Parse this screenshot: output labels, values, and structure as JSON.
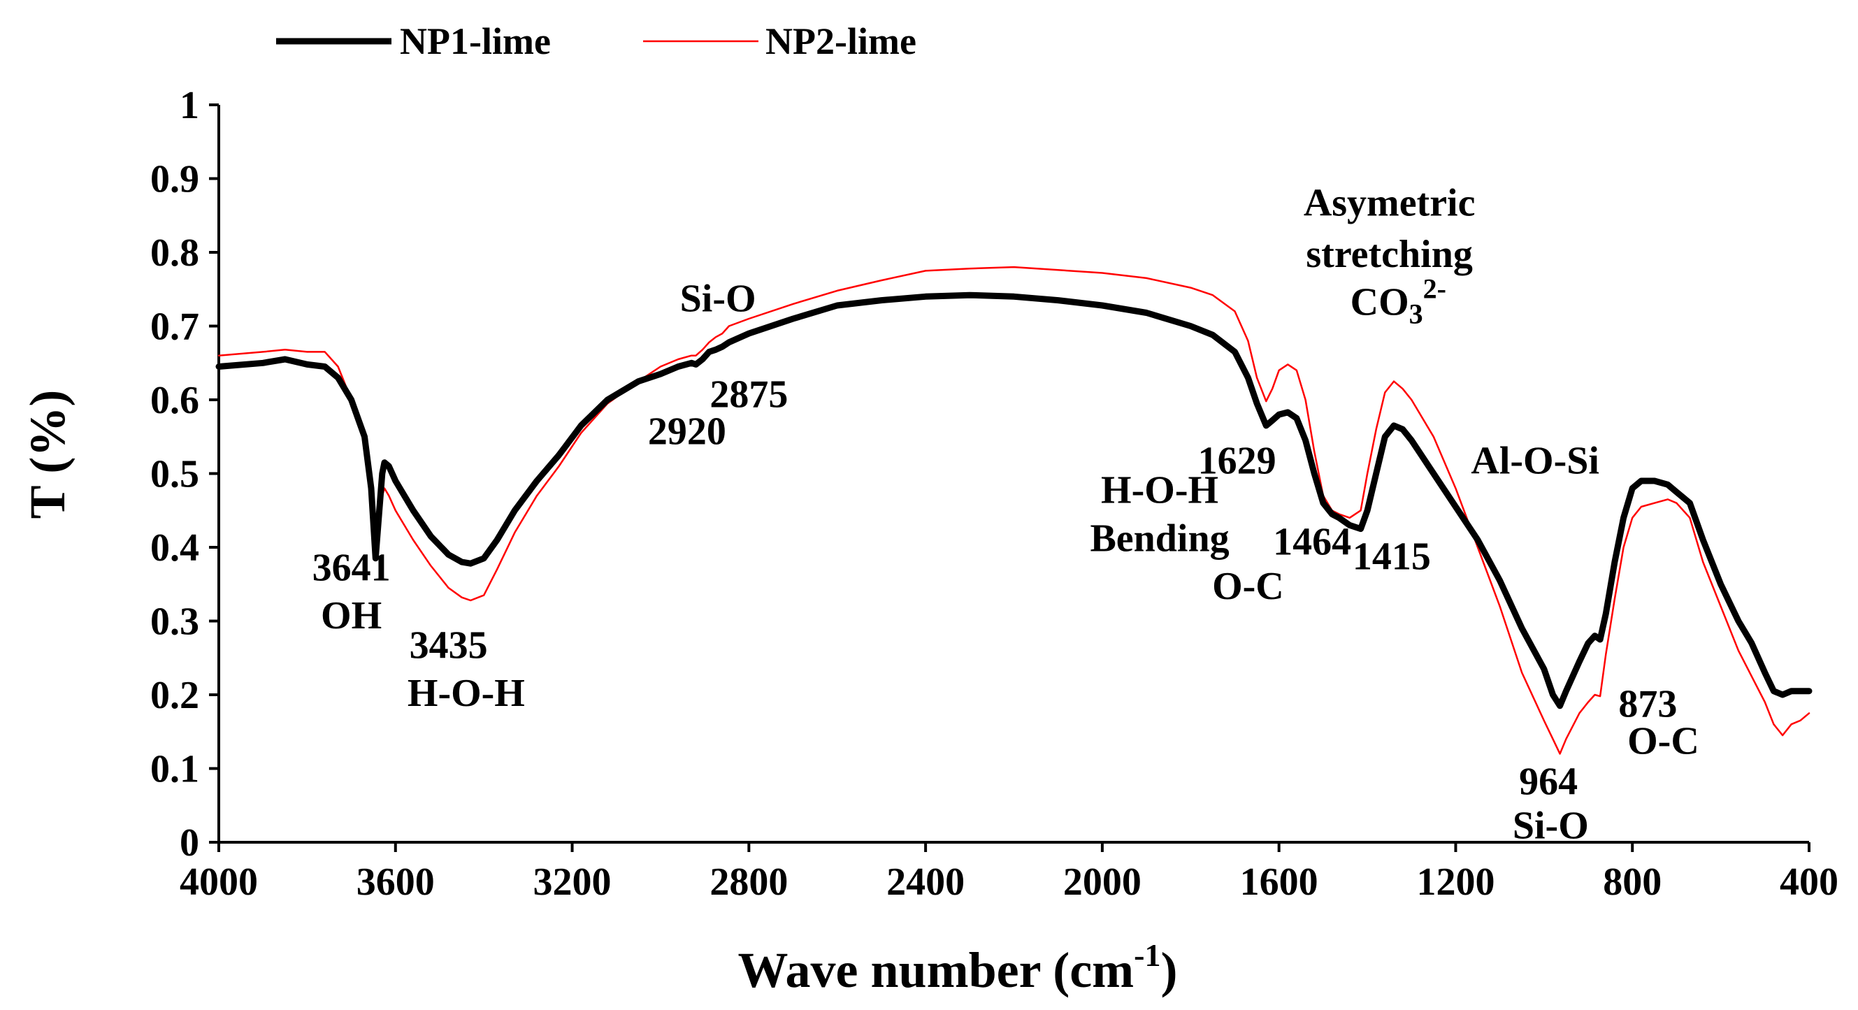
{
  "chart_data": {
    "type": "line",
    "title": "",
    "xlabel": "Wave number (cm",
    "xlabel_sup": "-1",
    "xlabel_close": ")",
    "ylabel": "T (%)",
    "xlim": [
      4000,
      400
    ],
    "ylim": [
      0,
      1
    ],
    "x_reversed": true,
    "grid": false,
    "legend_position": "top-left",
    "x_ticks": [
      "4000",
      "3600",
      "3200",
      "2800",
      "2400",
      "2000",
      "1600",
      "1200",
      "800",
      "400"
    ],
    "y_ticks": [
      "0",
      "0.1",
      "0.2",
      "0.3",
      "0.4",
      "0.5",
      "0.6",
      "0.7",
      "0.8",
      "0.9",
      "1"
    ],
    "series": [
      {
        "name": "NP1-lime",
        "color": "#000000",
        "points": [
          [
            4000,
            0.645
          ],
          [
            3900,
            0.65
          ],
          [
            3850,
            0.655
          ],
          [
            3800,
            0.648
          ],
          [
            3760,
            0.645
          ],
          [
            3730,
            0.63
          ],
          [
            3700,
            0.6
          ],
          [
            3670,
            0.55
          ],
          [
            3655,
            0.48
          ],
          [
            3645,
            0.385
          ],
          [
            3638,
            0.44
          ],
          [
            3630,
            0.5
          ],
          [
            3625,
            0.515
          ],
          [
            3615,
            0.51
          ],
          [
            3600,
            0.49
          ],
          [
            3560,
            0.45
          ],
          [
            3520,
            0.415
          ],
          [
            3480,
            0.39
          ],
          [
            3450,
            0.38
          ],
          [
            3430,
            0.378
          ],
          [
            3400,
            0.385
          ],
          [
            3370,
            0.41
          ],
          [
            3330,
            0.45
          ],
          [
            3280,
            0.49
          ],
          [
            3230,
            0.525
          ],
          [
            3180,
            0.565
          ],
          [
            3120,
            0.6
          ],
          [
            3050,
            0.625
          ],
          [
            3000,
            0.635
          ],
          [
            2960,
            0.645
          ],
          [
            2930,
            0.65
          ],
          [
            2920,
            0.648
          ],
          [
            2905,
            0.655
          ],
          [
            2890,
            0.665
          ],
          [
            2875,
            0.668
          ],
          [
            2860,
            0.672
          ],
          [
            2845,
            0.678
          ],
          [
            2800,
            0.69
          ],
          [
            2700,
            0.71
          ],
          [
            2600,
            0.728
          ],
          [
            2500,
            0.735
          ],
          [
            2400,
            0.74
          ],
          [
            2300,
            0.742
          ],
          [
            2200,
            0.74
          ],
          [
            2100,
            0.735
          ],
          [
            2000,
            0.728
          ],
          [
            1900,
            0.718
          ],
          [
            1800,
            0.7
          ],
          [
            1750,
            0.688
          ],
          [
            1700,
            0.665
          ],
          [
            1670,
            0.63
          ],
          [
            1650,
            0.595
          ],
          [
            1629,
            0.565
          ],
          [
            1615,
            0.572
          ],
          [
            1600,
            0.58
          ],
          [
            1580,
            0.583
          ],
          [
            1560,
            0.575
          ],
          [
            1540,
            0.545
          ],
          [
            1520,
            0.5
          ],
          [
            1500,
            0.46
          ],
          [
            1480,
            0.445
          ],
          [
            1464,
            0.44
          ],
          [
            1440,
            0.43
          ],
          [
            1415,
            0.425
          ],
          [
            1400,
            0.45
          ],
          [
            1380,
            0.5
          ],
          [
            1360,
            0.55
          ],
          [
            1340,
            0.565
          ],
          [
            1320,
            0.56
          ],
          [
            1300,
            0.545
          ],
          [
            1250,
            0.5
          ],
          [
            1200,
            0.455
          ],
          [
            1150,
            0.41
          ],
          [
            1100,
            0.355
          ],
          [
            1050,
            0.29
          ],
          [
            1000,
            0.235
          ],
          [
            980,
            0.2
          ],
          [
            964,
            0.185
          ],
          [
            950,
            0.205
          ],
          [
            920,
            0.245
          ],
          [
            900,
            0.27
          ],
          [
            885,
            0.28
          ],
          [
            873,
            0.275
          ],
          [
            860,
            0.31
          ],
          [
            840,
            0.38
          ],
          [
            820,
            0.44
          ],
          [
            800,
            0.48
          ],
          [
            780,
            0.49
          ],
          [
            750,
            0.49
          ],
          [
            720,
            0.485
          ],
          [
            700,
            0.475
          ],
          [
            670,
            0.46
          ],
          [
            640,
            0.41
          ],
          [
            600,
            0.35
          ],
          [
            560,
            0.3
          ],
          [
            530,
            0.27
          ],
          [
            500,
            0.23
          ],
          [
            480,
            0.205
          ],
          [
            460,
            0.2
          ],
          [
            440,
            0.205
          ],
          [
            420,
            0.205
          ],
          [
            400,
            0.205
          ]
        ]
      },
      {
        "name": "NP2-lime",
        "color": "#ff0000",
        "points": [
          [
            4000,
            0.66
          ],
          [
            3900,
            0.665
          ],
          [
            3850,
            0.668
          ],
          [
            3800,
            0.665
          ],
          [
            3760,
            0.665
          ],
          [
            3730,
            0.645
          ],
          [
            3700,
            0.6
          ],
          [
            3670,
            0.54
          ],
          [
            3655,
            0.47
          ],
          [
            3645,
            0.4
          ],
          [
            3638,
            0.43
          ],
          [
            3630,
            0.47
          ],
          [
            3625,
            0.48
          ],
          [
            3615,
            0.47
          ],
          [
            3600,
            0.45
          ],
          [
            3560,
            0.41
          ],
          [
            3520,
            0.375
          ],
          [
            3480,
            0.345
          ],
          [
            3450,
            0.332
          ],
          [
            3430,
            0.328
          ],
          [
            3400,
            0.335
          ],
          [
            3370,
            0.37
          ],
          [
            3330,
            0.42
          ],
          [
            3280,
            0.47
          ],
          [
            3230,
            0.51
          ],
          [
            3180,
            0.555
          ],
          [
            3120,
            0.595
          ],
          [
            3050,
            0.625
          ],
          [
            3000,
            0.645
          ],
          [
            2960,
            0.655
          ],
          [
            2930,
            0.66
          ],
          [
            2920,
            0.66
          ],
          [
            2905,
            0.668
          ],
          [
            2890,
            0.678
          ],
          [
            2875,
            0.685
          ],
          [
            2860,
            0.69
          ],
          [
            2845,
            0.7
          ],
          [
            2800,
            0.71
          ],
          [
            2700,
            0.73
          ],
          [
            2600,
            0.748
          ],
          [
            2500,
            0.762
          ],
          [
            2400,
            0.775
          ],
          [
            2300,
            0.778
          ],
          [
            2200,
            0.78
          ],
          [
            2100,
            0.776
          ],
          [
            2000,
            0.772
          ],
          [
            1900,
            0.765
          ],
          [
            1800,
            0.752
          ],
          [
            1750,
            0.742
          ],
          [
            1700,
            0.72
          ],
          [
            1670,
            0.68
          ],
          [
            1650,
            0.63
          ],
          [
            1629,
            0.598
          ],
          [
            1615,
            0.615
          ],
          [
            1600,
            0.64
          ],
          [
            1580,
            0.648
          ],
          [
            1560,
            0.64
          ],
          [
            1540,
            0.6
          ],
          [
            1520,
            0.53
          ],
          [
            1500,
            0.47
          ],
          [
            1480,
            0.45
          ],
          [
            1464,
            0.445
          ],
          [
            1440,
            0.44
          ],
          [
            1415,
            0.45
          ],
          [
            1400,
            0.5
          ],
          [
            1380,
            0.56
          ],
          [
            1360,
            0.61
          ],
          [
            1340,
            0.625
          ],
          [
            1320,
            0.615
          ],
          [
            1300,
            0.6
          ],
          [
            1250,
            0.55
          ],
          [
            1200,
            0.48
          ],
          [
            1150,
            0.4
          ],
          [
            1100,
            0.32
          ],
          [
            1050,
            0.23
          ],
          [
            1000,
            0.165
          ],
          [
            980,
            0.14
          ],
          [
            964,
            0.12
          ],
          [
            950,
            0.14
          ],
          [
            920,
            0.175
          ],
          [
            900,
            0.19
          ],
          [
            885,
            0.2
          ],
          [
            873,
            0.198
          ],
          [
            860,
            0.255
          ],
          [
            840,
            0.33
          ],
          [
            820,
            0.4
          ],
          [
            800,
            0.44
          ],
          [
            780,
            0.455
          ],
          [
            750,
            0.46
          ],
          [
            720,
            0.465
          ],
          [
            700,
            0.46
          ],
          [
            670,
            0.44
          ],
          [
            640,
            0.38
          ],
          [
            600,
            0.32
          ],
          [
            560,
            0.26
          ],
          [
            530,
            0.225
          ],
          [
            500,
            0.19
          ],
          [
            480,
            0.16
          ],
          [
            460,
            0.145
          ],
          [
            440,
            0.16
          ],
          [
            420,
            0.165
          ],
          [
            400,
            0.175
          ]
        ]
      }
    ],
    "annotations": [
      {
        "text": "3641",
        "x": 3700,
        "y": 0.355
      },
      {
        "text": "OH",
        "x": 3700,
        "y": 0.29
      },
      {
        "text": "3435",
        "x": 3480,
        "y": 0.25
      },
      {
        "text": "H-O-H",
        "x": 3440,
        "y": 0.185
      },
      {
        "text": "Si-O",
        "x": 2870,
        "y": 0.72
      },
      {
        "text": "2875",
        "x": 2800,
        "y": 0.59
      },
      {
        "text": "2920",
        "x": 2940,
        "y": 0.54
      },
      {
        "text": "1629",
        "x": 1695,
        "y": 0.5
      },
      {
        "text": "H-O-H",
        "x": 1870,
        "y": 0.46
      },
      {
        "text": "Bending",
        "x": 1870,
        "y": 0.395
      },
      {
        "text": "1464",
        "x": 1525,
        "y": 0.39
      },
      {
        "text": "O-C",
        "x": 1670,
        "y": 0.33
      },
      {
        "text": "1415",
        "x": 1345,
        "y": 0.37
      },
      {
        "text": "Asymetric",
        "x": 1350,
        "y": 0.85
      },
      {
        "text": "stretching",
        "x": 1350,
        "y": 0.78
      },
      {
        "text": "Al-O-Si",
        "x": 1020,
        "y": 0.5
      },
      {
        "text": "873",
        "x": 765,
        "y": 0.17
      },
      {
        "text": "O-C",
        "x": 730,
        "y": 0.12
      },
      {
        "text": "964",
        "x": 990,
        "y": 0.065
      },
      {
        "text": "Si-O",
        "x": 985,
        "y": 0.005
      }
    ],
    "co3_annotation": {
      "base": "CO",
      "sub": "3",
      "sup": "2-",
      "x": 1330,
      "y": 0.715
    }
  }
}
